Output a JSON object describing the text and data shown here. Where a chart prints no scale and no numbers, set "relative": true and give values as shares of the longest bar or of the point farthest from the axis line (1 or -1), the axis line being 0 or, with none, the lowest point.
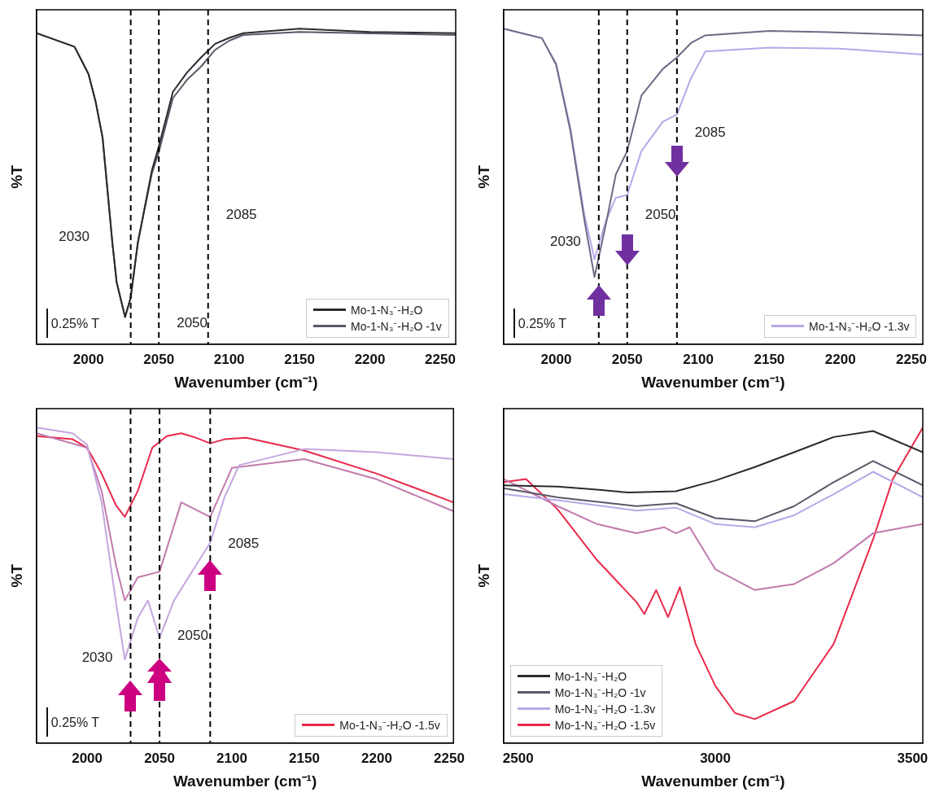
{
  "chart_data": [
    {
      "type": "line",
      "relative": true,
      "xlabel": "Wavenumber (cm⁻¹)",
      "ylabel": "%T",
      "xlim": [
        1963,
        2261
      ],
      "xticks": [
        2000,
        2050,
        2100,
        2150,
        2200,
        2250
      ],
      "legend": "bottom right",
      "marker": "none",
      "line_style": "solid",
      "series": [
        {
          "name": "Mo-1-N₃⁻-H₂O",
          "color": "#2b2b2b",
          "x": [
            1963,
            1990,
            1995,
            2000,
            2005,
            2010,
            2017,
            2020,
            2026,
            2030,
            2035,
            2040,
            2045,
            2050,
            2060,
            2070,
            2080,
            2090,
            2100,
            2110,
            2150,
            2200,
            2261
          ],
          "values": [
            0.986,
            0.943,
            0.9,
            0.856,
            0.77,
            0.655,
            0.32,
            0.196,
            0.086,
            0.148,
            0.32,
            0.435,
            0.55,
            0.627,
            0.8,
            0.861,
            0.909,
            0.952,
            0.971,
            0.986,
            1.0,
            0.99,
            0.986
          ]
        },
        {
          "name": "Mo-1-N₃⁻-H₂O -1v",
          "color": "#5a5868",
          "x": [
            1963,
            1990,
            1995,
            2000,
            2005,
            2010,
            2017,
            2020,
            2026,
            2030,
            2035,
            2040,
            2045,
            2050,
            2060,
            2070,
            2080,
            2090,
            2100,
            2110,
            2150,
            2200,
            2261
          ],
          "values": [
            0.986,
            0.943,
            0.9,
            0.856,
            0.77,
            0.655,
            0.32,
            0.196,
            0.086,
            0.148,
            0.32,
            0.43,
            0.54,
            0.61,
            0.78,
            0.838,
            0.88,
            0.933,
            0.962,
            0.98,
            0.99,
            0.985,
            0.98
          ]
        }
      ],
      "ref_lines": [
        {
          "axis": "x",
          "value": 2030,
          "label": "2030"
        },
        {
          "axis": "x",
          "value": 2050,
          "label": "2050"
        },
        {
          "axis": "x",
          "value": 2085,
          "label": "2085"
        }
      ],
      "annotations": [
        "0.25% T"
      ]
    },
    {
      "type": "line",
      "relative": true,
      "xlabel": "Wavenumber (cm⁻¹)",
      "ylabel": "%T",
      "xlim": [
        1963,
        2258
      ],
      "xticks": [
        2000,
        2050,
        2100,
        2150,
        2200,
        2250
      ],
      "legend": "bottom right",
      "marker": "none",
      "line_style": "solid",
      "series": [
        {
          "color": "#6e6a85",
          "x": [
            1963,
            1990,
            2000,
            2010,
            2020,
            2027,
            2035,
            2042,
            2050,
            2060,
            2075,
            2085,
            2095,
            2105,
            2150,
            2200,
            2258
          ],
          "values": [
            1.0,
            0.97,
            0.886,
            0.677,
            0.39,
            0.213,
            0.38,
            0.538,
            0.612,
            0.788,
            0.872,
            0.909,
            0.955,
            0.979,
            0.993,
            0.988,
            0.979
          ]
        },
        {
          "name": "Mo-1-N₃⁻-H₂O -1.3v",
          "color": "#b9a8e8",
          "x": [
            1963,
            1990,
            2000,
            2010,
            2020,
            2027,
            2035,
            2042,
            2050,
            2060,
            2075,
            2085,
            2095,
            2105,
            2150,
            2200,
            2258
          ],
          "values": [
            1.0,
            0.97,
            0.89,
            0.686,
            0.408,
            0.269,
            0.39,
            0.464,
            0.473,
            0.612,
            0.705,
            0.728,
            0.844,
            0.928,
            0.94,
            0.937,
            0.918
          ]
        }
      ],
      "ref_lines": [
        {
          "axis": "x",
          "value": 2030,
          "label": "2030"
        },
        {
          "axis": "x",
          "value": 2050,
          "label": "2050"
        },
        {
          "axis": "x",
          "value": 2085,
          "label": "2085"
        }
      ],
      "annotations": [
        "0.25% T"
      ]
    },
    {
      "type": "line",
      "relative": true,
      "xlabel": "Wavenumber (cm⁻¹)",
      "ylabel": "%T",
      "xlim": [
        1965,
        2253
      ],
      "xticks": [
        2000,
        2050,
        2100,
        2150,
        2200,
        2250
      ],
      "legend": "bottom right",
      "marker": "none",
      "line_style": "solid",
      "series": [
        {
          "color": "#c4a6e0",
          "x": [
            1965,
            1990,
            2000,
            2010,
            2020,
            2026,
            2035,
            2042,
            2050,
            2060,
            2075,
            2085,
            2095,
            2105,
            2150,
            2200,
            2253
          ],
          "values": [
            1.0,
            0.982,
            0.945,
            0.763,
            0.443,
            0.265,
            0.397,
            0.452,
            0.333,
            0.452,
            0.562,
            0.635,
            0.781,
            0.881,
            0.932,
            0.922,
            0.9
          ]
        },
        {
          "color": "#c27aae",
          "x": [
            1965,
            2000,
            2010,
            2020,
            2026,
            2035,
            2050,
            2065,
            2085,
            2100,
            2150,
            2200,
            2253
          ],
          "values": [
            0.982,
            0.936,
            0.799,
            0.562,
            0.452,
            0.525,
            0.543,
            0.763,
            0.717,
            0.872,
            0.9,
            0.836,
            0.735
          ]
        },
        {
          "name": "Mo-1-N₃⁻-H₂O -1.5v",
          "color": "#e8294a",
          "x": [
            1965,
            1990,
            2000,
            2010,
            2020,
            2026,
            2035,
            2045,
            2055,
            2065,
            2075,
            2085,
            2095,
            2110,
            2150,
            2200,
            2253
          ],
          "values": [
            0.973,
            0.963,
            0.936,
            0.854,
            0.753,
            0.717,
            0.799,
            0.936,
            0.973,
            0.982,
            0.968,
            0.95,
            0.963,
            0.968,
            0.927,
            0.854,
            0.763
          ]
        }
      ],
      "ref_lines": [
        {
          "axis": "x",
          "value": 2030,
          "label": "2030"
        },
        {
          "axis": "x",
          "value": 2050,
          "label": "2050"
        },
        {
          "axis": "x",
          "value": 2085,
          "label": "2085"
        }
      ],
      "annotations": [
        "0.25% T"
      ]
    },
    {
      "type": "line",
      "relative": true,
      "xlabel": "Wavenumber (cm⁻¹)",
      "ylabel": "%T",
      "xlim": [
        2463,
        3526
      ],
      "xticks": [
        2500,
        3000,
        3500
      ],
      "legend": "bottom left",
      "marker": "none",
      "line_style": "solid",
      "series": [
        {
          "name": "Mo-1-N₃⁻-H₂O",
          "color": "#2b2b2b",
          "x": [
            2463,
            2600,
            2700,
            2780,
            2900,
            3000,
            3100,
            3200,
            3300,
            3400,
            3526
          ],
          "values": [
            0.817,
            0.813,
            0.803,
            0.794,
            0.798,
            0.832,
            0.875,
            0.922,
            0.97,
            0.989,
            0.922
          ]
        },
        {
          "name": "Mo-1-N₃⁻-H₂O -1v",
          "color": "#5a5868",
          "x": [
            2463,
            2600,
            2800,
            2900,
            3000,
            3100,
            3200,
            3300,
            3400,
            3526
          ],
          "values": [
            0.808,
            0.779,
            0.751,
            0.76,
            0.713,
            0.703,
            0.751,
            0.827,
            0.894,
            0.817
          ]
        },
        {
          "name": "Mo-1-N₃⁻-H₂O -1.3v",
          "color": "#b9a8e8",
          "x": [
            2463,
            2600,
            2800,
            2900,
            3000,
            3100,
            3200,
            3300,
            3400,
            3526
          ],
          "values": [
            0.789,
            0.77,
            0.737,
            0.746,
            0.694,
            0.684,
            0.722,
            0.789,
            0.86,
            0.779
          ]
        },
        {
          "color": "#c27aae",
          "x": [
            2463,
            2600,
            2700,
            2800,
            2870,
            2900,
            2935,
            3000,
            3100,
            3200,
            3300,
            3400,
            3526
          ],
          "values": [
            0.837,
            0.751,
            0.694,
            0.665,
            0.684,
            0.665,
            0.684,
            0.551,
            0.485,
            0.504,
            0.57,
            0.665,
            0.694
          ]
        },
        {
          "name": "Mo-1-N₃⁻-H₂O -1.5v",
          "color": "#e8294a",
          "x": [
            2463,
            2520,
            2600,
            2700,
            2800,
            2820,
            2850,
            2880,
            2910,
            2950,
            3000,
            3050,
            3100,
            3200,
            3300,
            3400,
            3450,
            3526
          ],
          "values": [
            0.827,
            0.837,
            0.741,
            0.58,
            0.447,
            0.409,
            0.485,
            0.399,
            0.494,
            0.314,
            0.181,
            0.095,
            0.076,
            0.133,
            0.314,
            0.646,
            0.837,
            1.0
          ]
        }
      ]
    }
  ]
}
